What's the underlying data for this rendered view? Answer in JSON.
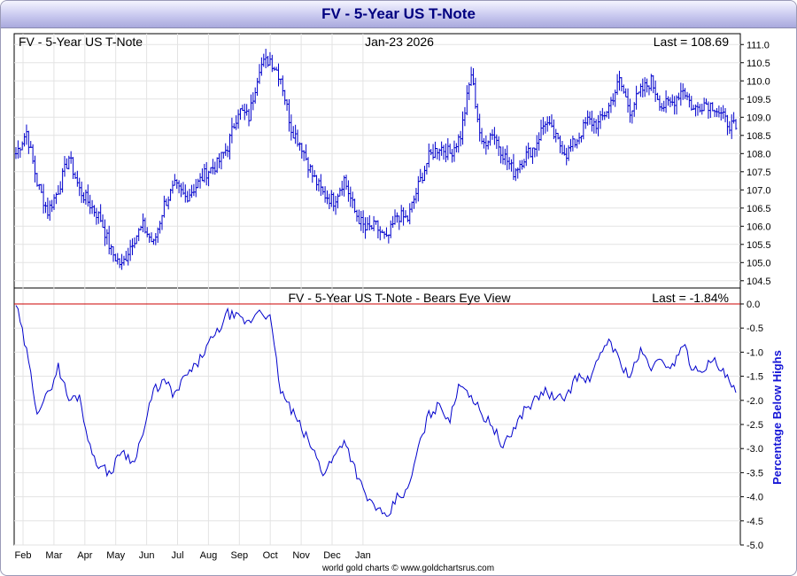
{
  "window_title": "FV  -  5-Year US T-Note",
  "credit": "world gold charts © www.goldchartsrus.com",
  "chart_data": [
    {
      "type": "ohlc-bar",
      "title_left": "FV  -  5-Year US T-Note",
      "date_label": "Jan-23  2026",
      "last_label": "Last = 108.69",
      "ylim": [
        104.3,
        111.3
      ],
      "y_ticks": [
        "111.0",
        "110.5",
        "110.0",
        "109.5",
        "109.0",
        "108.5",
        "108.0",
        "107.5",
        "107.0",
        "106.5",
        "106.0",
        "105.5",
        "105.0",
        "104.5"
      ],
      "x_month_labels": [
        "Feb",
        "Mar",
        "Apr",
        "May",
        "Jun",
        "Jul",
        "Aug",
        "Sep",
        "Oct",
        "Nov",
        "Dec",
        "Jan"
      ],
      "series_color": "#0000cc",
      "weekly_close": [
        108.0,
        108.6,
        107.2,
        106.4,
        107.0,
        107.9,
        107.0,
        106.6,
        106.2,
        105.3,
        104.9,
        105.6,
        106.0,
        105.5,
        106.6,
        107.1,
        106.8,
        107.1,
        107.5,
        107.7,
        108.2,
        109.2,
        109.0,
        110.4,
        110.6,
        110.1,
        108.7,
        108.2,
        107.4,
        106.9,
        106.7,
        107.3,
        106.4,
        105.9,
        106.0,
        105.6,
        106.3,
        106.2,
        107.1,
        107.9,
        108.2,
        108.0,
        108.5,
        110.2,
        108.2,
        108.6,
        108.0,
        107.5,
        107.9,
        108.2,
        108.9,
        108.4,
        108.0,
        108.4,
        108.9,
        108.8,
        109.3,
        110.0,
        109.2,
        109.7,
        110.0,
        109.3,
        109.4,
        109.8,
        109.2,
        109.4,
        109.3,
        108.9,
        108.69
      ]
    },
    {
      "type": "line",
      "title": "FV  -  5-Year US T-Note - Bears Eye View",
      "last_label": "Last = -1.84%",
      "ylabel": "Percentage Below Highs",
      "ylim": [
        -5.0,
        0.0
      ],
      "y_ticks": [
        "0.0",
        "-0.5",
        "-1.0",
        "-1.5",
        "-2.0",
        "-2.5",
        "-3.0",
        "-3.5",
        "-4.0",
        "-4.5",
        "-5.0"
      ],
      "reference_line": 0.0,
      "reference_color": "#cc0000",
      "series_color": "#0000cc",
      "weekly_values": [
        0.0,
        -1.0,
        -2.2,
        -1.9,
        -1.3,
        -2.0,
        -1.9,
        -3.0,
        -3.4,
        -3.5,
        -3.0,
        -3.3,
        -2.7,
        -1.8,
        -1.6,
        -1.9,
        -1.5,
        -1.3,
        -0.9,
        -0.6,
        -0.2,
        -0.3,
        -0.4,
        -0.1,
        -0.3,
        -1.8,
        -2.2,
        -2.6,
        -3.0,
        -3.5,
        -3.2,
        -2.8,
        -3.4,
        -4.0,
        -4.2,
        -4.5,
        -4.0,
        -3.9,
        -3.0,
        -2.3,
        -2.1,
        -2.4,
        -1.6,
        -1.9,
        -2.3,
        -2.5,
        -3.0,
        -2.6,
        -2.2,
        -2.0,
        -1.8,
        -2.0,
        -1.9,
        -1.5,
        -1.6,
        -1.2,
        -0.7,
        -1.2,
        -1.5,
        -1.0,
        -1.3,
        -1.2,
        -1.3,
        -0.8,
        -1.4,
        -1.3,
        -1.2,
        -1.5,
        -1.84
      ]
    }
  ]
}
